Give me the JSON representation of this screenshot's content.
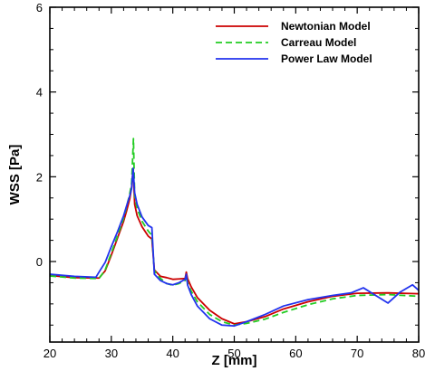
{
  "chart_data": {
    "type": "line",
    "xlabel": "Z [mm]",
    "ylabel": "WSS [Pa]",
    "xlim": [
      20,
      80
    ],
    "ylim": [
      -1.9,
      6
    ],
    "xticks": [
      20,
      30,
      40,
      50,
      60,
      70,
      80
    ],
    "yticks": [
      0,
      2,
      4,
      6
    ],
    "grid": false,
    "legend_position": "top-right",
    "series": [
      {
        "name": "Newtonian Model",
        "color": "#cc0000",
        "dash": "solid",
        "x": [
          20,
          24,
          28,
          29,
          30,
          31,
          32,
          32.5,
          33,
          33.3,
          33.55,
          33.8,
          34.2,
          35,
          36,
          36.6,
          37,
          38,
          39,
          40,
          41,
          42,
          42.2,
          42.4,
          43,
          44,
          46,
          48,
          50,
          52,
          55,
          58,
          62,
          66,
          70,
          75,
          80
        ],
        "y": [
          -0.33,
          -0.38,
          -0.39,
          -0.22,
          0.15,
          0.55,
          0.95,
          1.2,
          1.48,
          1.75,
          2.2,
          1.35,
          1.08,
          0.82,
          0.6,
          0.53,
          -0.2,
          -0.35,
          -0.38,
          -0.42,
          -0.41,
          -0.4,
          -0.25,
          -0.4,
          -0.6,
          -0.85,
          -1.15,
          -1.35,
          -1.47,
          -1.42,
          -1.3,
          -1.12,
          -0.95,
          -0.82,
          -0.75,
          -0.74,
          -0.76
        ]
      },
      {
        "name": "Carreau Model",
        "color": "#22cc22",
        "dash": "dashed",
        "x": [
          20,
          24,
          28,
          29,
          30,
          31,
          32,
          32.5,
          33,
          33.3,
          33.6,
          33.8,
          34.2,
          35,
          36,
          36.6,
          37,
          38,
          39,
          40,
          41,
          42,
          42.2,
          42.4,
          43,
          44,
          46,
          48,
          50,
          52,
          55,
          58,
          62,
          66,
          70,
          75,
          80
        ],
        "y": [
          -0.34,
          -0.39,
          -0.4,
          -0.2,
          0.2,
          0.6,
          1.02,
          1.3,
          1.6,
          1.85,
          2.9,
          1.55,
          1.25,
          0.95,
          0.72,
          0.62,
          -0.22,
          -0.4,
          -0.52,
          -0.56,
          -0.52,
          -0.45,
          -0.32,
          -0.5,
          -0.7,
          -0.95,
          -1.25,
          -1.42,
          -1.5,
          -1.46,
          -1.36,
          -1.2,
          -1.02,
          -0.88,
          -0.8,
          -0.78,
          -0.82
        ]
      },
      {
        "name": "Power Law Model",
        "color": "#2233ee",
        "dash": "solid",
        "x": [
          20,
          24,
          27.5,
          28,
          29,
          30,
          31,
          32,
          32.5,
          33,
          33.3,
          33.55,
          33.8,
          34.2,
          35,
          36,
          36.6,
          37,
          38,
          39,
          40,
          41,
          42,
          42.2,
          42.4,
          43,
          44,
          46,
          48,
          50,
          52,
          55,
          58,
          62,
          66,
          69,
          71,
          73,
          75,
          77,
          79,
          80
        ],
        "y": [
          -0.3,
          -0.35,
          -0.37,
          -0.25,
          -0.02,
          0.35,
          0.7,
          1.08,
          1.32,
          1.55,
          1.72,
          2.2,
          1.62,
          1.35,
          1.05,
          0.85,
          0.8,
          -0.3,
          -0.45,
          -0.52,
          -0.55,
          -0.5,
          -0.42,
          -0.3,
          -0.55,
          -0.78,
          -1.05,
          -1.35,
          -1.5,
          -1.52,
          -1.42,
          -1.25,
          -1.05,
          -0.9,
          -0.8,
          -0.74,
          -0.62,
          -0.8,
          -0.98,
          -0.72,
          -0.55,
          -0.68
        ]
      }
    ]
  }
}
